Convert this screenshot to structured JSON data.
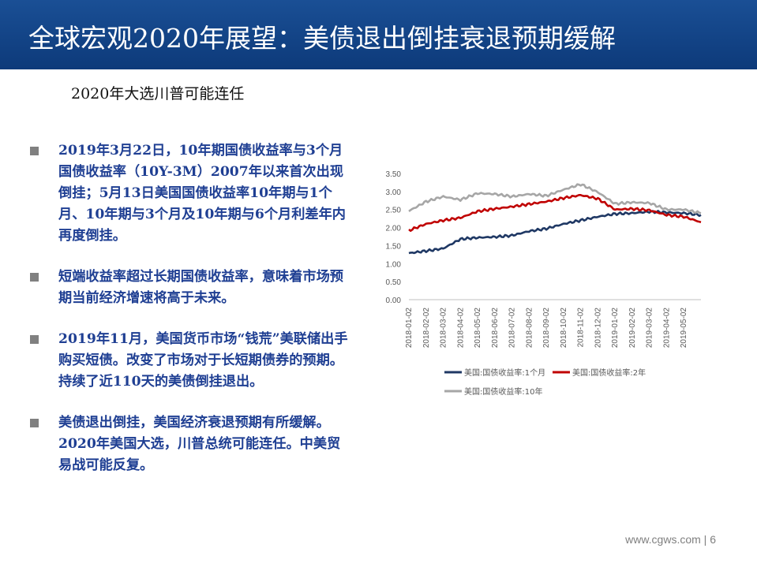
{
  "header": {
    "title": "全球宏观2020年展望：美债退出倒挂衰退预期缓解"
  },
  "subtitle": "2020年大选川普可能连任",
  "bullets": [
    "2019年3月22日，10年期国债收益率与3个月国债收益率（10Y-3M）2007年以来首次出现倒挂；5月13日美国国债收益率10年期与1个月、10年期与3个月及10年期与6个月利差年内再度倒挂。",
    "短端收益率超过长期国债收益率，意味着市场预期当前经济增速将高于未来。",
    "2019年11月，美国货币市场“钱荒”美联储出手购买短债。改变了市场对于长短期债券的预期。持续了近110天的美债倒挂退出。",
    "美债退出倒挂，美国经济衰退预期有所缓解。2020年美国大选，川普总统可能连任。中美贸易战可能反复。"
  ],
  "footer": {
    "site": "www.cgws.com",
    "separator": "|",
    "page": "6"
  },
  "chart_data": {
    "type": "line",
    "x": [
      "2018-01-02",
      "2018-02-02",
      "2018-03-02",
      "2018-04-02",
      "2018-05-02",
      "2018-06-02",
      "2018-07-02",
      "2018-08-02",
      "2018-09-02",
      "2018-10-02",
      "2018-11-02",
      "2018-12-02",
      "2019-01-02",
      "2019-02-02",
      "2019-03-02",
      "2019-04-02",
      "2019-05-02",
      "2019-05-31"
    ],
    "yticks": [
      "3.50",
      "3.00",
      "2.50",
      "2.00",
      "1.50",
      "1.00",
      "0.50",
      "0.00"
    ],
    "ylim": [
      0,
      3.5
    ],
    "xtick_labels": [
      "2018-01-02",
      "2018-02-02",
      "2018-03-02",
      "2018-04-02",
      "2018-05-02",
      "2018-06-02",
      "2018-07-02",
      "2018-08-02",
      "2018-09-02",
      "2018-10-02",
      "2018-11-02",
      "2018-12-02",
      "2019-01-02",
      "2019-02-02",
      "2019-03-02",
      "2019-04-02",
      "2019-05-02"
    ],
    "grid": false,
    "legend_position": "bottom",
    "series": [
      {
        "name": "美国:国债收益率:1个月",
        "color": "#1f3864",
        "values": [
          1.29,
          1.35,
          1.42,
          1.68,
          1.72,
          1.74,
          1.78,
          1.9,
          1.97,
          2.1,
          2.2,
          2.3,
          2.38,
          2.4,
          2.44,
          2.42,
          2.4,
          2.35
        ]
      },
      {
        "name": "美国:国债收益率:2年",
        "color": "#c00000",
        "values": [
          1.92,
          2.1,
          2.2,
          2.27,
          2.45,
          2.52,
          2.58,
          2.65,
          2.72,
          2.82,
          2.9,
          2.8,
          2.5,
          2.52,
          2.48,
          2.35,
          2.3,
          2.15
        ]
      },
      {
        "name": "美国:国债收益率:10年",
        "color": "#a6a6a6",
        "values": [
          2.46,
          2.72,
          2.86,
          2.77,
          2.95,
          2.93,
          2.86,
          2.93,
          2.88,
          3.05,
          3.2,
          2.98,
          2.66,
          2.7,
          2.68,
          2.5,
          2.5,
          2.4
        ]
      }
    ]
  }
}
